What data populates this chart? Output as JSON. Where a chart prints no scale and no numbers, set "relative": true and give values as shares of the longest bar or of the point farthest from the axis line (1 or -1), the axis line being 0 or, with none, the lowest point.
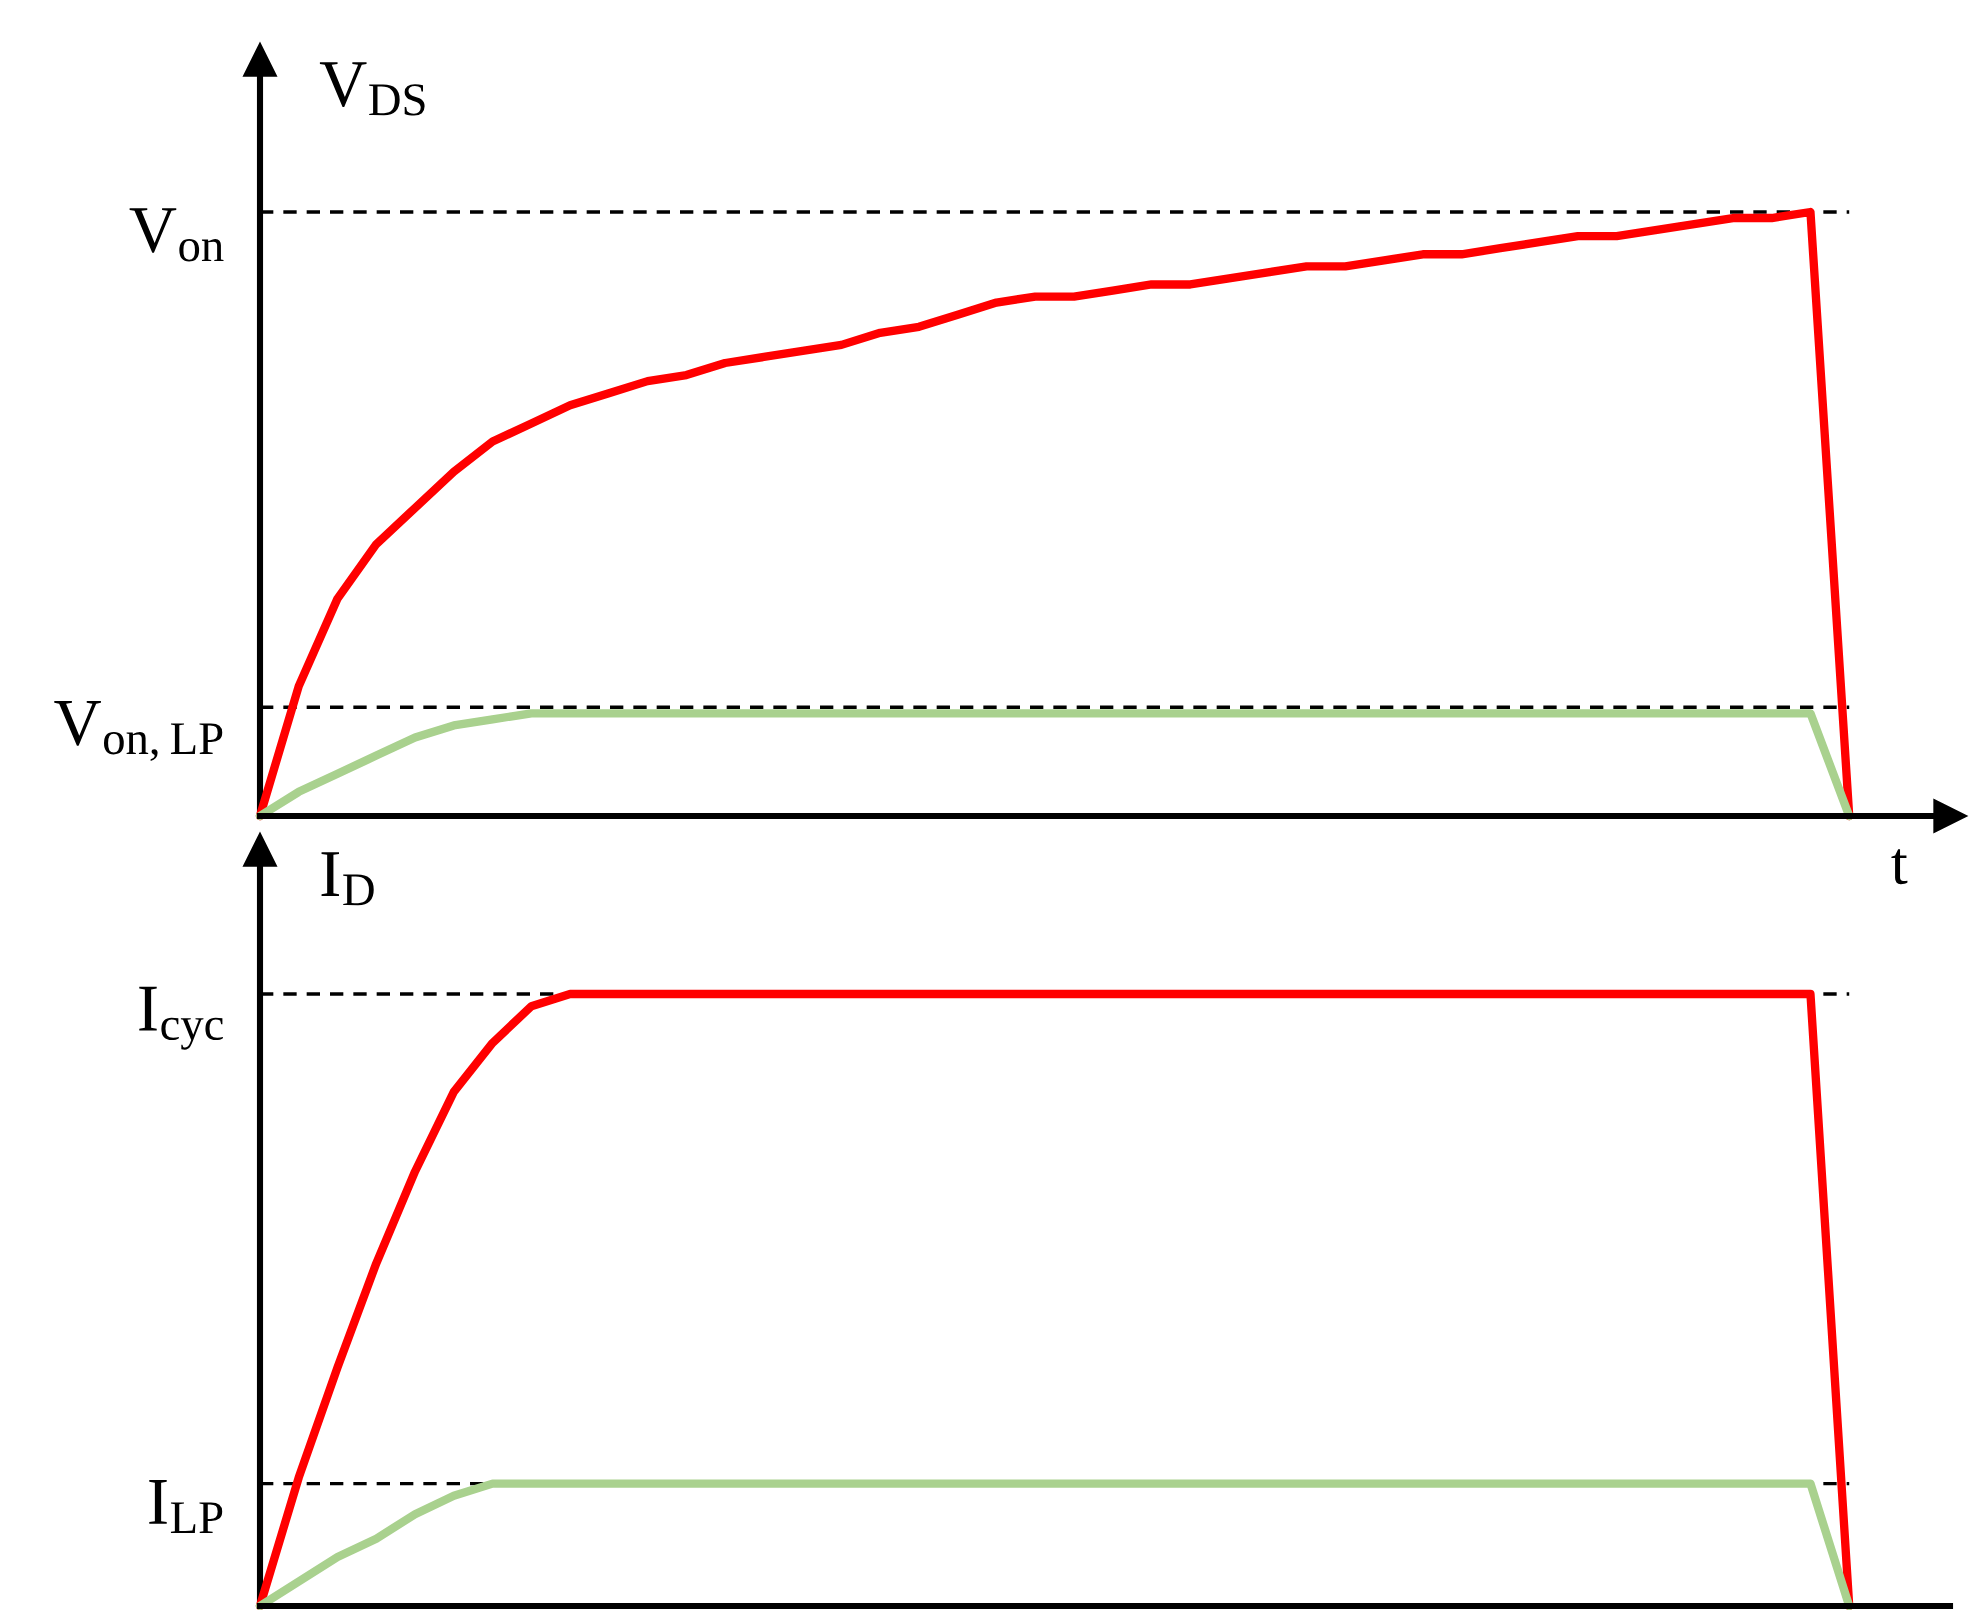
{
  "chart_data": [
    {
      "type": "line",
      "relative": true,
      "ylabel": "V$_{DS}$",
      "xlabel": "t",
      "legend": false,
      "categories": [
        null,
        null,
        null,
        null,
        null,
        null,
        null,
        null,
        null,
        null,
        null,
        null,
        null,
        null,
        null,
        null,
        null,
        null,
        null,
        null,
        null,
        null,
        null,
        null,
        null,
        null,
        null,
        null,
        null,
        null,
        null,
        null,
        null,
        null,
        null,
        null,
        null,
        null,
        null,
        null,
        null,
        null,
        null
      ],
      "series": [
        {
          "color": "#ff0000",
          "values": [
            0,
            0.215,
            0.36,
            0.45,
            0.51,
            0.57,
            0.62,
            0.65,
            0.68,
            0.7,
            0.72,
            0.73,
            0.75,
            0.76,
            0.77,
            0.78,
            0.8,
            0.81,
            0.83,
            0.85,
            0.86,
            0.86,
            0.87,
            0.88,
            0.88,
            0.89,
            0.9,
            0.91,
            0.91,
            0.92,
            0.93,
            0.93,
            0.94,
            0.95,
            0.96,
            0.96,
            0.97,
            0.98,
            0.99,
            0.99,
            1,
            0,
            null
          ]
        },
        {
          "color": "#a9d18e",
          "values": [
            0,
            0.04,
            0.07,
            0.1,
            0.13,
            0.15,
            0.16,
            0.17,
            0.17,
            0.17,
            0.17,
            0.17,
            0.17,
            0.17,
            0.17,
            0.17,
            0.17,
            0.17,
            0.17,
            0.17,
            0.17,
            0.17,
            0.17,
            0.17,
            0.17,
            0.17,
            0.17,
            0.17,
            0.17,
            0.17,
            0.17,
            0.17,
            0.17,
            0.17,
            0.17,
            0.17,
            0.17,
            0.17,
            0.17,
            0.17,
            0.17,
            0,
            null
          ]
        }
      ],
      "ref_lines": [
        {
          "axis": "y",
          "value": 1,
          "label": "V$_{on}$",
          "color": "#000000",
          "line_style": "dashed"
        },
        {
          "axis": "y",
          "value": 0.18,
          "label": "V$_{on,LP}$",
          "color": "#000000",
          "line_style": "dashed"
        }
      ]
    },
    {
      "type": "line",
      "relative": true,
      "ylabel": "I$_{D}$",
      "legend": false,
      "categories": [
        null,
        null,
        null,
        null,
        null,
        null,
        null,
        null,
        null,
        null,
        null,
        null,
        null,
        null,
        null,
        null,
        null,
        null,
        null,
        null,
        null,
        null,
        null,
        null,
        null,
        null,
        null,
        null,
        null,
        null,
        null,
        null,
        null,
        null,
        null,
        null,
        null,
        null,
        null,
        null,
        null,
        null,
        null
      ],
      "series": [
        {
          "color": "#ff0000",
          "values": [
            0,
            0.21,
            0.39,
            0.56,
            0.71,
            0.84,
            0.92,
            0.98,
            1,
            1,
            1,
            1,
            1,
            1,
            1,
            1,
            1,
            1,
            1,
            1,
            1,
            1,
            1,
            1,
            1,
            1,
            1,
            1,
            1,
            1,
            1,
            1,
            1,
            1,
            1,
            1,
            1,
            1,
            1,
            1,
            1,
            0,
            null
          ]
        },
        {
          "color": "#a9d18e",
          "values": [
            0,
            0.04,
            0.08,
            0.11,
            0.15,
            0.18,
            0.2,
            0.2,
            0.2,
            0.2,
            0.2,
            0.2,
            0.2,
            0.2,
            0.2,
            0.2,
            0.2,
            0.2,
            0.2,
            0.2,
            0.2,
            0.2,
            0.2,
            0.2,
            0.2,
            0.2,
            0.2,
            0.2,
            0.2,
            0.2,
            0.2,
            0.2,
            0.2,
            0.2,
            0.2,
            0.2,
            0.2,
            0.2,
            0.2,
            0.2,
            0.2,
            0,
            null
          ]
        }
      ],
      "ref_lines": [
        {
          "axis": "y",
          "value": 1,
          "label": "I$_{cyc}$",
          "color": "#000000",
          "line_style": "dashed"
        },
        {
          "axis": "y",
          "value": 0.2,
          "label": "I$_{LP}$",
          "color": "#000000",
          "line_style": "dashed"
        }
      ]
    }
  ]
}
